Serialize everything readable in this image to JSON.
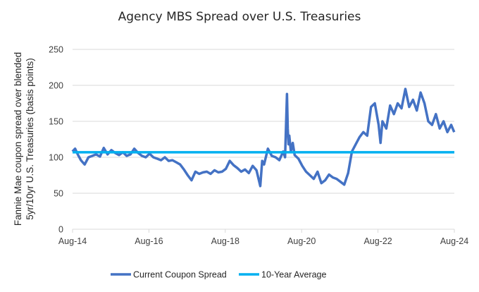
{
  "chart_data": {
    "type": "line",
    "title": "Agency MBS Spread over U.S. Treasuries",
    "xlabel": "",
    "ylabel_lines": [
      "Fannie Mae coupon spread over blended",
      "5yr/10yr U.S. Treasuries (basis points)"
    ],
    "ylim": [
      0,
      250
    ],
    "yticks": [
      0,
      50,
      100,
      150,
      200,
      250
    ],
    "xlim": [
      2014.583,
      2024.583
    ],
    "xticks": [
      {
        "label": "Aug-14",
        "value": 2014.583
      },
      {
        "label": "Aug-16",
        "value": 2016.583
      },
      {
        "label": "Aug-18",
        "value": 2018.583
      },
      {
        "label": "Aug-20",
        "value": 2020.583
      },
      {
        "label": "Aug-22",
        "value": 2022.583
      },
      {
        "label": "Aug-24",
        "value": 2024.583
      }
    ],
    "grid": true,
    "legend_position": "bottom",
    "series": [
      {
        "name": "Current Coupon Spread",
        "color": "#4472C4",
        "x": [
          2014.58,
          2014.65,
          2014.72,
          2014.8,
          2014.9,
          2015.0,
          2015.1,
          2015.2,
          2015.3,
          2015.4,
          2015.5,
          2015.6,
          2015.7,
          2015.8,
          2015.9,
          2016.0,
          2016.1,
          2016.2,
          2016.3,
          2016.4,
          2016.5,
          2016.6,
          2016.7,
          2016.8,
          2016.9,
          2017.0,
          2017.1,
          2017.2,
          2017.3,
          2017.4,
          2017.5,
          2017.6,
          2017.7,
          2017.8,
          2017.9,
          2018.0,
          2018.1,
          2018.2,
          2018.3,
          2018.4,
          2018.5,
          2018.6,
          2018.7,
          2018.8,
          2018.9,
          2019.0,
          2019.1,
          2019.2,
          2019.3,
          2019.4,
          2019.5,
          2019.55,
          2019.6,
          2019.7,
          2019.8,
          2019.9,
          2020.0,
          2020.1,
          2020.15,
          2020.2,
          2020.22,
          2020.24,
          2020.26,
          2020.3,
          2020.35,
          2020.4,
          2020.5,
          2020.6,
          2020.7,
          2020.8,
          2020.9,
          2021.0,
          2021.1,
          2021.2,
          2021.3,
          2021.4,
          2021.5,
          2021.6,
          2021.7,
          2021.8,
          2021.9,
          2022.0,
          2022.1,
          2022.2,
          2022.3,
          2022.4,
          2022.5,
          2022.6,
          2022.65,
          2022.7,
          2022.8,
          2022.9,
          2023.0,
          2023.1,
          2023.2,
          2023.3,
          2023.4,
          2023.5,
          2023.6,
          2023.7,
          2023.8,
          2023.9,
          2024.0,
          2024.1,
          2024.2,
          2024.3,
          2024.4,
          2024.5,
          2024.58
        ],
        "y": [
          108,
          112,
          104,
          96,
          90,
          100,
          102,
          104,
          101,
          113,
          104,
          110,
          106,
          103,
          107,
          102,
          104,
          112,
          106,
          102,
          100,
          105,
          100,
          98,
          96,
          100,
          95,
          96,
          93,
          90,
          83,
          75,
          68,
          80,
          77,
          79,
          80,
          77,
          82,
          79,
          80,
          84,
          95,
          89,
          85,
          80,
          83,
          78,
          88,
          82,
          60,
          95,
          90,
          112,
          102,
          100,
          96,
          108,
          100,
          188,
          140,
          118,
          130,
          108,
          120,
          103,
          98,
          88,
          80,
          75,
          70,
          80,
          64,
          68,
          76,
          72,
          70,
          66,
          62,
          78,
          108,
          118,
          128,
          135,
          130,
          170,
          175,
          145,
          120,
          150,
          140,
          172,
          160,
          175,
          168,
          195,
          170,
          180,
          165,
          190,
          175,
          150,
          145,
          160,
          140,
          150,
          135,
          145,
          135
        ]
      },
      {
        "name": "10-Year Average",
        "color": "#00B0F0",
        "x": [
          2014.583,
          2024.583
        ],
        "y": [
          107,
          107
        ]
      }
    ]
  }
}
